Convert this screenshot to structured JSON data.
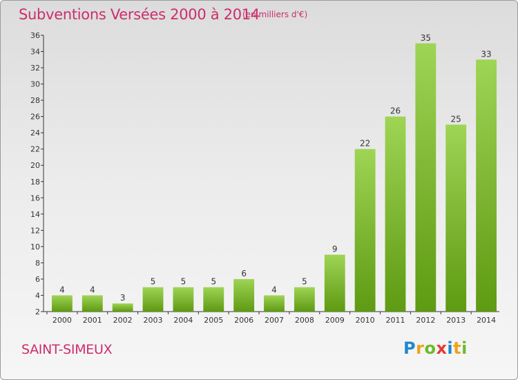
{
  "header": {
    "title": "Subventions Versées 2000 à 2014",
    "subtitle": "(en milliers d'€)"
  },
  "footer": {
    "commune": "SAINT-SIMEUX",
    "logo_text": "Proxiti"
  },
  "colors": {
    "title": "#cc2d6b",
    "bar_top": "#9fd455",
    "bar_bottom": "#5e9a12",
    "axis": "#333333"
  },
  "chart_data": {
    "type": "bar",
    "title": "Subventions Versées 2000 à 2014",
    "subtitle": "(en milliers d'€)",
    "xlabel": "",
    "ylabel": "",
    "categories": [
      "2000",
      "2001",
      "2002",
      "2003",
      "2004",
      "2005",
      "2006",
      "2007",
      "2008",
      "2009",
      "2010",
      "2011",
      "2012",
      "2013",
      "2014"
    ],
    "values": [
      4,
      4,
      3,
      5,
      5,
      5,
      6,
      4,
      5,
      9,
      22,
      26,
      35,
      25,
      33
    ],
    "ylim": [
      2,
      36
    ],
    "yticks": [
      2,
      4,
      6,
      8,
      10,
      12,
      14,
      16,
      18,
      20,
      22,
      24,
      26,
      28,
      30,
      32,
      34,
      36
    ],
    "grid": false,
    "legend": "none"
  }
}
